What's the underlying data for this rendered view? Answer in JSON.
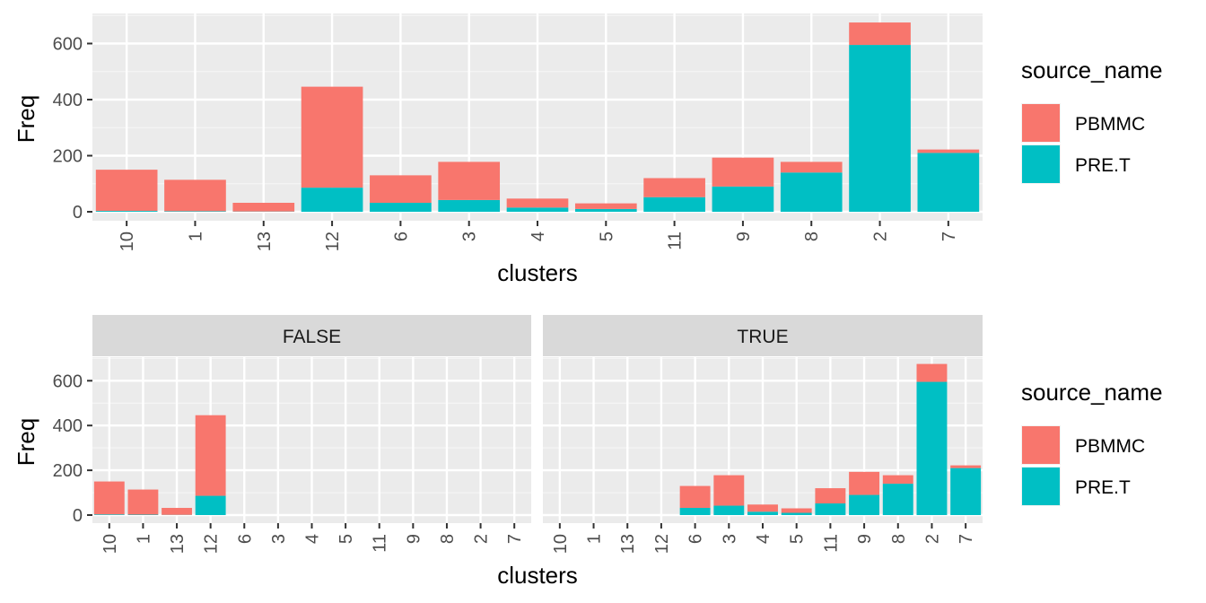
{
  "chart_data": [
    {
      "type": "bar",
      "stacked": true,
      "title": "",
      "xlabel": "clusters",
      "ylabel": "Freq",
      "ylim": [
        0,
        700
      ],
      "yticks": [
        0,
        200,
        400,
        600
      ],
      "grid": true,
      "categories": [
        "10",
        "1",
        "13",
        "12",
        "6",
        "3",
        "4",
        "5",
        "11",
        "9",
        "8",
        "2",
        "7"
      ],
      "series": [
        {
          "name": "PRE.T",
          "color": "#00BFC4",
          "values": [
            3,
            2,
            1,
            86,
            32,
            42,
            15,
            10,
            52,
            90,
            140,
            595,
            210
          ]
        },
        {
          "name": "PBMMC",
          "color": "#F8766D",
          "values": [
            147,
            112,
            31,
            360,
            98,
            136,
            32,
            20,
            68,
            103,
            38,
            80,
            12
          ]
        }
      ],
      "legend": {
        "title": "source_name",
        "position": "right",
        "labels": [
          "PBMMC",
          "PRE.T"
        ]
      }
    },
    {
      "type": "bar",
      "stacked": true,
      "title": "",
      "xlabel": "clusters",
      "ylabel": "Freq",
      "ylim": [
        0,
        700
      ],
      "yticks": [
        0,
        200,
        400,
        600
      ],
      "grid": true,
      "facets": [
        {
          "label": "FALSE",
          "categories": [
            "10",
            "1",
            "13",
            "12",
            "6",
            "3",
            "4",
            "5",
            "11",
            "9",
            "8",
            "2",
            "7"
          ],
          "series": [
            {
              "name": "PRE.T",
              "color": "#00BFC4",
              "values": [
                3,
                2,
                1,
                86,
                0,
                0,
                0,
                0,
                0,
                0,
                0,
                0,
                0
              ]
            },
            {
              "name": "PBMMC",
              "color": "#F8766D",
              "values": [
                147,
                112,
                31,
                360,
                0,
                0,
                0,
                0,
                0,
                0,
                0,
                0,
                0
              ]
            }
          ]
        },
        {
          "label": "TRUE",
          "categories": [
            "10",
            "1",
            "13",
            "12",
            "6",
            "3",
            "4",
            "5",
            "11",
            "9",
            "8",
            "2",
            "7"
          ],
          "series": [
            {
              "name": "PRE.T",
              "color": "#00BFC4",
              "values": [
                0,
                0,
                0,
                0,
                32,
                42,
                15,
                10,
                52,
                90,
                140,
                595,
                210
              ]
            },
            {
              "name": "PBMMC",
              "color": "#F8766D",
              "values": [
                0,
                0,
                0,
                0,
                98,
                136,
                32,
                20,
                68,
                103,
                38,
                80,
                12
              ]
            }
          ]
        }
      ],
      "legend": {
        "title": "source_name",
        "position": "right",
        "labels": [
          "PBMMC",
          "PRE.T"
        ]
      }
    }
  ]
}
